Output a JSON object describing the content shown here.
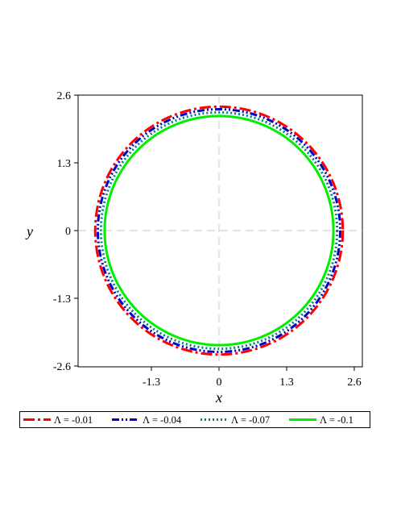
{
  "chart_data": {
    "type": "line",
    "title": "",
    "xlabel": "x",
    "ylabel": "y",
    "xlim": [
      -2.6,
      2.6
    ],
    "ylim": [
      -2.6,
      2.6
    ],
    "xticks": [
      -1.3,
      0,
      1.3,
      2.6
    ],
    "xtick_labels": [
      "-1.3",
      "0",
      "1.3",
      "2.6"
    ],
    "yticks": [
      -2.6,
      -1.3,
      0,
      1.3,
      2.6
    ],
    "ytick_labels": [
      "-2.6",
      "-1.3",
      "0",
      "1.3",
      "2.6"
    ],
    "crosshair_grid": true,
    "legend_position": "bottom",
    "series": [
      {
        "name": "Λ = -0.01",
        "radius": 2.38,
        "color": "#ff0000",
        "style": "dash-dot-long"
      },
      {
        "name": "Λ = -0.04",
        "radius": 2.33,
        "color": "#0000cc",
        "style": "dash-dot-dot"
      },
      {
        "name": "Λ = -0.07",
        "radius": 2.27,
        "color": "#008080",
        "style": "dotted"
      },
      {
        "name": "Λ = -0.1",
        "radius": 2.2,
        "color": "#00ee00",
        "style": "solid"
      }
    ]
  }
}
